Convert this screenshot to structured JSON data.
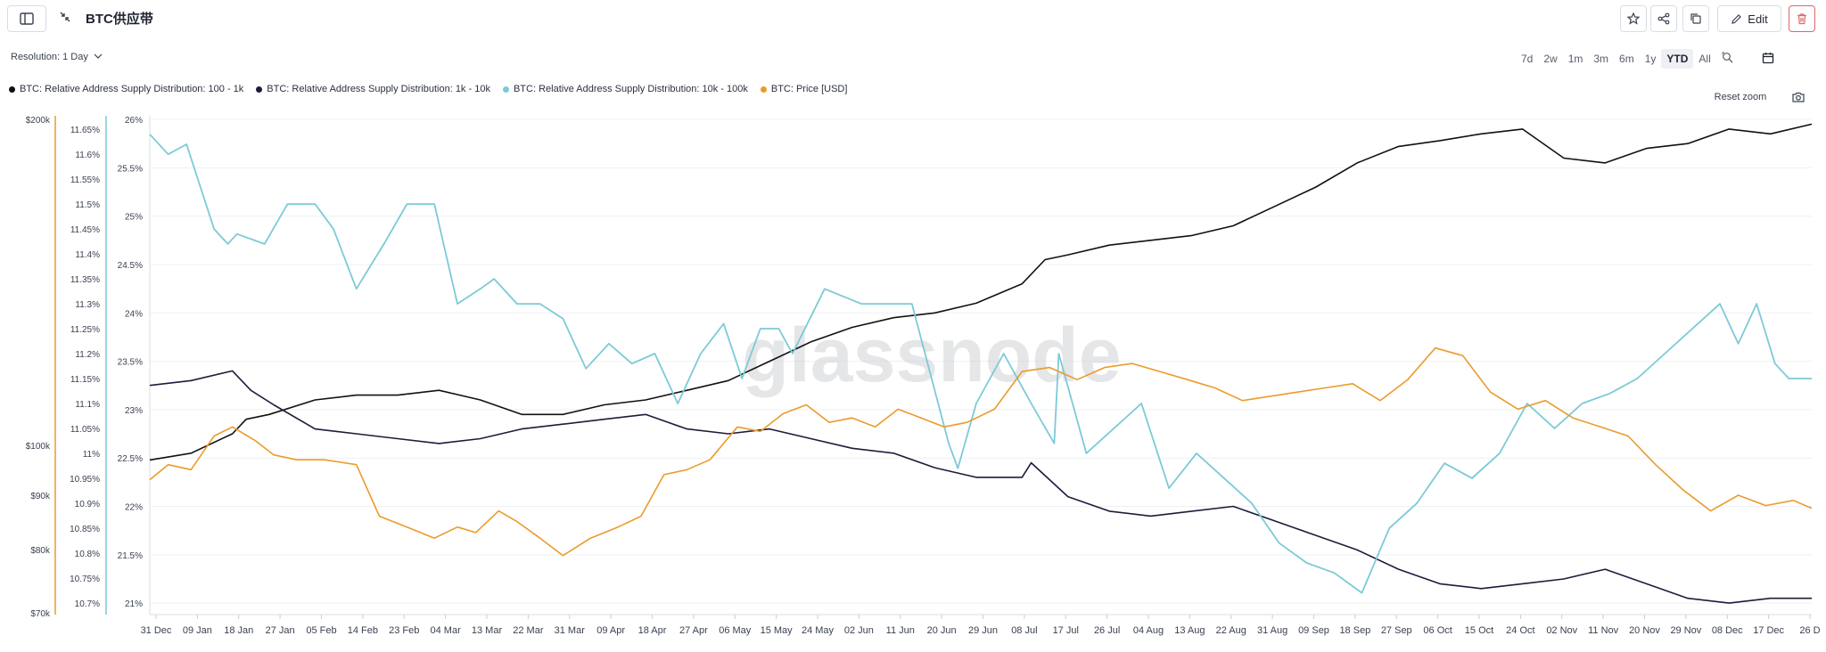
{
  "header": {
    "title": "BTC供应带",
    "edit_label": "Edit"
  },
  "controls": {
    "resolution_label": "Resolution: 1 Day",
    "time_ranges": [
      "7d",
      "2w",
      "1m",
      "3m",
      "6m",
      "1y",
      "YTD",
      "All"
    ],
    "active_range": "YTD",
    "reset_zoom_label": "Reset zoom"
  },
  "icons": {
    "sidebar": "sidebar-toggle-icon",
    "collapse": "collapse-arrows-icon",
    "star": "star-icon",
    "share": "share-icon",
    "copy": "copy-icon",
    "edit": "pencil-icon",
    "delete": "trash-icon",
    "zoom": "zoom-icon",
    "calendar": "calendar-icon",
    "camera": "camera-icon"
  },
  "colors": {
    "series_100_1k": "#111111",
    "series_1k_10k": "#1e1b3a",
    "series_10k_100k": "#7ccad6",
    "series_price": "#eb9b2a",
    "price_axis": "#eb9b2a",
    "mid_axis": "#7ccad6",
    "delete": "#e06666"
  },
  "watermark": "glassnode",
  "chart_data": {
    "type": "line",
    "title": "",
    "x_tick_labels": [
      "31 Dec",
      "09 Jan",
      "18 Jan",
      "27 Jan",
      "05 Feb",
      "14 Feb",
      "23 Feb",
      "04 Mar",
      "13 Mar",
      "22 Mar",
      "31 Mar",
      "09 Apr",
      "18 Apr",
      "27 Apr",
      "06 May",
      "15 May",
      "24 May",
      "02 Jun",
      "11 Jun",
      "20 Jun",
      "29 Jun",
      "08 Jul",
      "17 Jul",
      "26 Jul",
      "04 Aug",
      "13 Aug",
      "22 Aug",
      "31 Aug",
      "09 Sep",
      "18 Sep",
      "27 Sep",
      "06 Oct",
      "15 Oct",
      "24 Oct",
      "02 Nov",
      "11 Nov",
      "20 Nov",
      "29 Nov",
      "08 Dec",
      "17 Dec",
      "26 D"
    ],
    "axes": {
      "price": {
        "ticks": [
          "$70k",
          "$80k",
          "$90k",
          "$100k",
          "$200k"
        ],
        "values": [
          70000,
          80000,
          90000,
          100000,
          200000
        ],
        "scale": "log"
      },
      "mid": {
        "ticks": [
          "11.65%",
          "11.6%",
          "11.55%",
          "11.5%",
          "11.45%",
          "11.4%",
          "11.35%",
          "11.3%",
          "11.25%",
          "11.2%",
          "11.15%",
          "11.1%",
          "11.05%",
          "11%",
          "10.95%",
          "10.9%",
          "10.85%",
          "10.8%",
          "10.75%",
          "10.7%"
        ],
        "range": [
          10.68,
          11.67
        ]
      },
      "main": {
        "ticks": [
          "26%",
          "25.5%",
          "25%",
          "24.5%",
          "24%",
          "23.5%",
          "23%",
          "22.5%",
          "22%",
          "21.5%",
          "21%"
        ],
        "range": [
          20.9,
          26.0
        ]
      }
    },
    "series": [
      {
        "name": "BTC: Relative Address Supply Distribution: 100 - 1k",
        "axis": "main",
        "x": [
          0,
          9,
          18,
          21,
          26,
          36,
          45,
          54,
          63,
          72,
          81,
          90,
          99,
          108,
          117,
          126,
          135,
          144,
          153,
          162,
          171,
          180,
          190,
          195,
          200,
          209,
          218,
          227,
          236,
          245,
          254,
          263,
          272,
          281,
          290,
          299,
          308,
          317,
          326,
          335,
          344,
          353,
          362
        ],
        "values": [
          22.48,
          22.55,
          22.75,
          22.9,
          22.95,
          23.1,
          23.15,
          23.15,
          23.2,
          23.1,
          22.95,
          22.95,
          23.05,
          23.1,
          23.2,
          23.3,
          23.5,
          23.7,
          23.85,
          23.95,
          24.0,
          24.1,
          24.3,
          24.55,
          24.6,
          24.7,
          24.75,
          24.8,
          24.9,
          25.1,
          25.3,
          25.55,
          25.72,
          25.78,
          25.85,
          25.9,
          25.6,
          25.55,
          25.7,
          25.75,
          25.9,
          25.85,
          25.95
        ]
      },
      {
        "name": "BTC: Relative Address Supply Distribution: 1k - 10k",
        "axis": "main",
        "x": [
          0,
          9,
          18,
          22,
          27,
          36,
          45,
          54,
          63,
          72,
          81,
          90,
          99,
          108,
          117,
          126,
          135,
          144,
          153,
          162,
          171,
          180,
          190,
          192,
          200,
          209,
          218,
          227,
          236,
          245,
          254,
          263,
          272,
          281,
          290,
          299,
          308,
          317,
          326,
          335,
          344,
          353,
          362
        ],
        "values": [
          23.25,
          23.3,
          23.4,
          23.2,
          23.05,
          22.8,
          22.75,
          22.7,
          22.65,
          22.7,
          22.8,
          22.85,
          22.9,
          22.95,
          22.8,
          22.75,
          22.8,
          22.7,
          22.6,
          22.55,
          22.4,
          22.3,
          22.3,
          22.45,
          22.1,
          21.95,
          21.9,
          21.95,
          22.0,
          21.85,
          21.7,
          21.55,
          21.35,
          21.2,
          21.15,
          21.2,
          21.25,
          21.35,
          21.2,
          21.05,
          21.0,
          21.05,
          21.05
        ]
      },
      {
        "name": "BTC: Relative Address Supply Distribution: 10k - 100k",
        "axis": "mid",
        "x": [
          0,
          4,
          8,
          14,
          17,
          19,
          25,
          30,
          36,
          40,
          45,
          51,
          56,
          62,
          67,
          72,
          75,
          80,
          85,
          90,
          95,
          100,
          105,
          110,
          115,
          120,
          125,
          129,
          133,
          137,
          140,
          147,
          155,
          160,
          166,
          174,
          176,
          180,
          186,
          192,
          197,
          198,
          204,
          210,
          216,
          222,
          228,
          234,
          240,
          246,
          252,
          258,
          264,
          270,
          276,
          282,
          288,
          294,
          300,
          306,
          312,
          318,
          324,
          330,
          336,
          342,
          346,
          350,
          354,
          357,
          362
        ],
        "values": [
          11.64,
          11.6,
          11.62,
          11.45,
          11.42,
          11.44,
          11.42,
          11.5,
          11.5,
          11.45,
          11.33,
          11.42,
          11.5,
          11.5,
          11.3,
          11.33,
          11.35,
          11.3,
          11.3,
          11.27,
          11.17,
          11.22,
          11.18,
          11.2,
          11.1,
          11.2,
          11.26,
          11.15,
          11.25,
          11.25,
          11.2,
          11.33,
          11.3,
          11.3,
          11.3,
          11.02,
          10.97,
          11.1,
          11.2,
          11.1,
          11.02,
          11.2,
          11.0,
          11.05,
          11.1,
          10.93,
          11.0,
          10.95,
          10.9,
          10.82,
          10.78,
          10.76,
          10.72,
          10.85,
          10.9,
          10.98,
          10.95,
          11.0,
          11.1,
          11.05,
          11.1,
          11.12,
          11.15,
          11.2,
          11.25,
          11.3,
          11.22,
          11.3,
          11.18,
          11.15,
          11.15
        ]
      },
      {
        "name": "BTC: Price [USD]",
        "axis": "price",
        "x": [
          0,
          4,
          9,
          14,
          18,
          23,
          27,
          32,
          38,
          45,
          50,
          56,
          62,
          67,
          71,
          76,
          80,
          85,
          90,
          96,
          102,
          107,
          112,
          117,
          122,
          128,
          133,
          138,
          143,
          148,
          153,
          158,
          163,
          168,
          173,
          178,
          184,
          190,
          196,
          202,
          208,
          214,
          220,
          226,
          232,
          238,
          244,
          250,
          256,
          262,
          268,
          274,
          280,
          286,
          292,
          298,
          304,
          310,
          316,
          322,
          328,
          334,
          340,
          346,
          352,
          358,
          362
        ],
        "values": [
          93000,
          96000,
          95000,
          102000,
          104000,
          101000,
          98000,
          97000,
          97000,
          96000,
          86000,
          84000,
          82000,
          84000,
          83000,
          87000,
          85000,
          82000,
          79000,
          82000,
          84000,
          86000,
          94000,
          95000,
          97000,
          104000,
          103000,
          107000,
          109000,
          105000,
          106000,
          104000,
          108000,
          106000,
          104000,
          105000,
          108000,
          117000,
          118000,
          115000,
          118000,
          119000,
          117000,
          115000,
          113000,
          110000,
          111000,
          112000,
          113000,
          114000,
          110000,
          115000,
          123000,
          121000,
          112000,
          108000,
          110000,
          106000,
          104000,
          102000,
          96000,
          91000,
          87000,
          90000,
          88000,
          89000,
          87500
        ]
      }
    ],
    "x_range": [
      0,
      362
    ],
    "grid": true,
    "legend_position": "top-left"
  }
}
